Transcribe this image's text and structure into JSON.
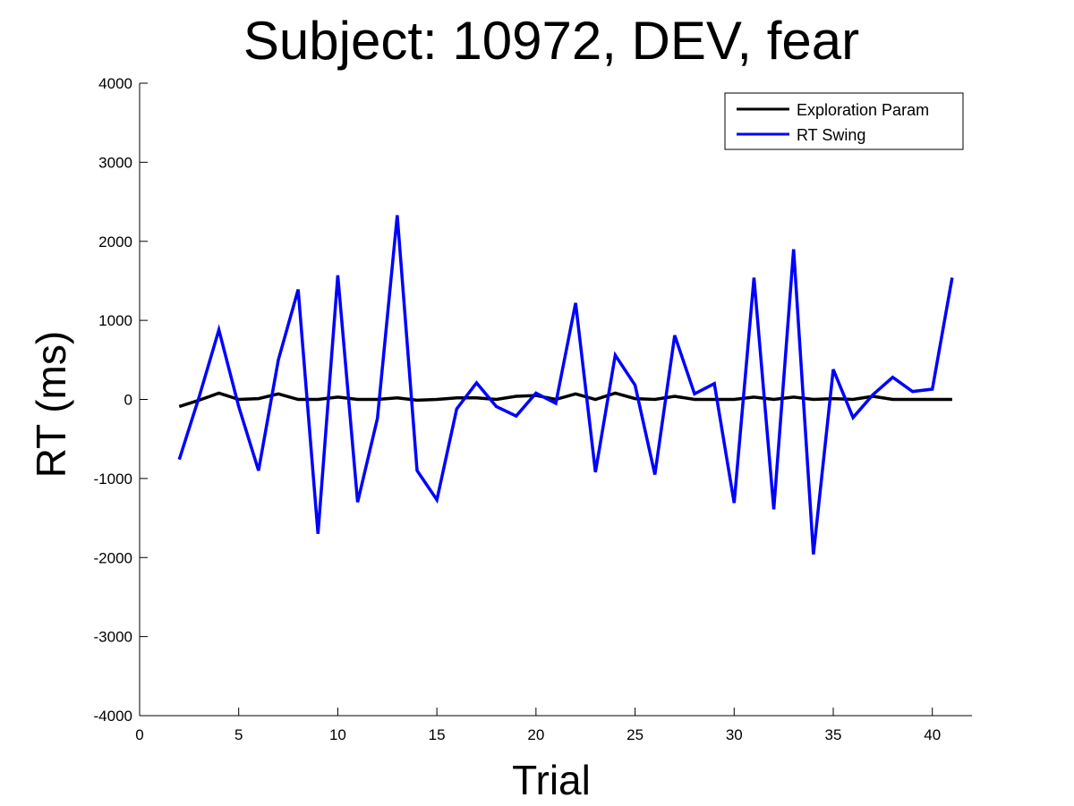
{
  "chart_data": {
    "type": "line",
    "title": "Subject: 10972, DEV, fear",
    "xlabel": "Trial",
    "ylabel": "RT (ms)",
    "xlim": [
      0,
      42
    ],
    "ylim": [
      -4000,
      4000
    ],
    "xticks": [
      0,
      5,
      10,
      15,
      20,
      25,
      30,
      35,
      40
    ],
    "yticks": [
      -4000,
      -3000,
      -2000,
      -1000,
      0,
      1000,
      2000,
      3000,
      4000
    ],
    "grid": false,
    "legend_position": "top-right",
    "x": [
      2,
      3,
      4,
      5,
      6,
      7,
      8,
      9,
      10,
      11,
      12,
      13,
      14,
      15,
      16,
      17,
      18,
      19,
      20,
      21,
      22,
      23,
      24,
      25,
      26,
      27,
      28,
      29,
      30,
      31,
      32,
      33,
      34,
      35,
      36,
      37,
      38,
      39,
      40,
      41
    ],
    "series": [
      {
        "name": "Exploration Param",
        "color": "#000000",
        "values": [
          -90,
          -10,
          80,
          0,
          10,
          70,
          0,
          0,
          30,
          0,
          0,
          20,
          -10,
          0,
          20,
          20,
          0,
          40,
          50,
          0,
          70,
          0,
          80,
          10,
          0,
          40,
          0,
          0,
          0,
          30,
          0,
          30,
          0,
          10,
          0,
          40,
          0,
          0,
          0,
          0
        ]
      },
      {
        "name": "RT Swing",
        "color": "#0000ff",
        "values": [
          -760,
          30,
          880,
          -90,
          -900,
          500,
          1390,
          -1700,
          1570,
          -1300,
          -240,
          2330,
          -900,
          -1270,
          -120,
          210,
          -90,
          -210,
          80,
          -50,
          1220,
          -920,
          560,
          180,
          -950,
          810,
          70,
          200,
          -1310,
          1540,
          -1390,
          1900,
          -1960,
          380,
          -230,
          60,
          280,
          100,
          130,
          1540
        ]
      }
    ]
  }
}
